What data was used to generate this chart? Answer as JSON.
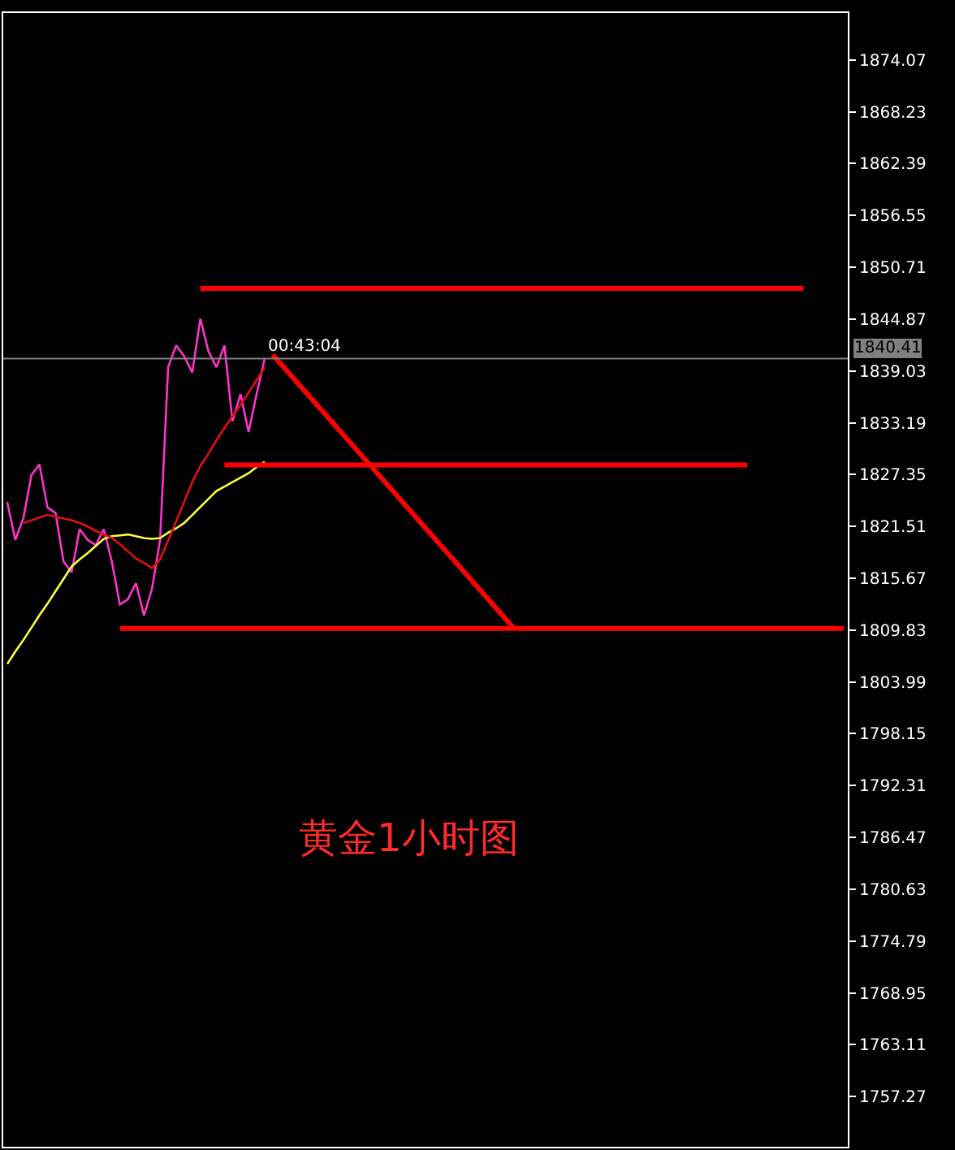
{
  "chart_data": {
    "type": "line",
    "annotations": [
      "黄金1小时图",
      "00:43:04"
    ],
    "categories": [
      null,
      null,
      null,
      null,
      null,
      null,
      null,
      null,
      null,
      null,
      null,
      null,
      null,
      null,
      null,
      null,
      null,
      null,
      null,
      null,
      null,
      null,
      null,
      null,
      null,
      null,
      null,
      null,
      null,
      null,
      null,
      null,
      null,
      null,
      null,
      null,
      null,
      null,
      null,
      null,
      null,
      null,
      null,
      null,
      null,
      null,
      null,
      null,
      null,
      null,
      null,
      null,
      null,
      null,
      null,
      null,
      null,
      null,
      null,
      null,
      null,
      null,
      null,
      null,
      null,
      null,
      null,
      null,
      null,
      null,
      null,
      null,
      null,
      null,
      null,
      null,
      null,
      null,
      null,
      null,
      null,
      null,
      null,
      null,
      null,
      null,
      null,
      null,
      null,
      null,
      null,
      null,
      null,
      null,
      null,
      null,
      null,
      null,
      null,
      null,
      null,
      null,
      null,
      null,
      null
    ],
    "series": [
      {
        "color": "#ff33cc",
        "values": [
          1824.25,
          1819.99,
          1822.42,
          1827.29,
          1828.5,
          1823.64,
          1823.03,
          1817.55,
          1816.34,
          1821.2,
          1819.99,
          1819.38,
          1821.2,
          1817.55,
          1812.7,
          1813.3,
          1815.12,
          1811.47,
          1814.52,
          1819.99,
          1839.45,
          1841.9,
          1840.67,
          1838.85,
          1844.92,
          1841.27,
          1839.45,
          1841.9,
          1833.37,
          1836.42,
          1832.15,
          1836.42,
          1840.41,
          null,
          null,
          null,
          null,
          null,
          null,
          null,
          null,
          null,
          null,
          null,
          null,
          null,
          null,
          null,
          null,
          null,
          null,
          null,
          null,
          null,
          null,
          null,
          null,
          null,
          null,
          null,
          null,
          null,
          null,
          null,
          null,
          null,
          null,
          null,
          null,
          null,
          null,
          null,
          null,
          null,
          null,
          null,
          null,
          null,
          null,
          null,
          null,
          null,
          null,
          null,
          null,
          null,
          null,
          null,
          null,
          null,
          null,
          null,
          null,
          null,
          null,
          null,
          null,
          null,
          null,
          null,
          null,
          null,
          null,
          null,
          null
        ]
      },
      {
        "color": "#ffff40",
        "values": [
          1806.0,
          1807.4,
          1808.7,
          1810.1,
          1811.5,
          1812.8,
          1814.2,
          1815.6,
          1817.0,
          1817.8,
          1818.5,
          1819.3,
          1820.1,
          1820.4,
          1820.5,
          1820.6,
          1820.4,
          1820.2,
          1820.1,
          1820.2,
          1820.8,
          1821.3,
          1821.9,
          1822.8,
          1823.7,
          1824.6,
          1825.5,
          1826.0,
          1826.5,
          1827.0,
          1827.5,
          1828.2,
          1828.8,
          null,
          null,
          null,
          null,
          null,
          null,
          null,
          null,
          null,
          null,
          null,
          null,
          null,
          null,
          null,
          null,
          null,
          null,
          null,
          null,
          null,
          null,
          null,
          null,
          null,
          null,
          null,
          null,
          null,
          null,
          null,
          null,
          null,
          null,
          null,
          null,
          null,
          null,
          null,
          null,
          null,
          null,
          null,
          null,
          null,
          null,
          null,
          null,
          null,
          null,
          null,
          null,
          null,
          null,
          null,
          null,
          null,
          null,
          null,
          null,
          null,
          null,
          null,
          null,
          null,
          null,
          null,
          null,
          null,
          null,
          null,
          null
        ]
      },
      {
        "color": "#e01010",
        "values": [
          null,
          null,
          1821.9,
          1822.2,
          1822.5,
          1822.8,
          1822.6,
          1822.4,
          1822.2,
          1821.9,
          1821.5,
          1821.0,
          1820.6,
          1820.2,
          1819.5,
          1818.7,
          1817.9,
          1817.4,
          1816.8,
          1817.8,
          1819.9,
          1822.1,
          1824.3,
          1826.5,
          1828.3,
          1829.7,
          1831.2,
          1832.6,
          1833.9,
          1835.2,
          1836.6,
          1838.0,
          1839.4,
          null,
          null,
          null,
          null,
          null,
          null,
          null,
          null,
          null,
          null,
          null,
          null,
          null,
          null,
          null,
          null,
          null,
          null,
          null,
          null,
          null,
          null,
          null,
          null,
          null,
          null,
          null,
          null,
          null,
          null,
          null,
          null,
          null,
          null,
          null,
          null,
          null,
          null,
          null,
          null,
          null,
          null,
          null,
          null,
          null,
          null,
          null,
          null,
          null,
          null,
          null,
          null,
          null,
          null,
          null,
          null,
          null,
          null,
          null,
          null,
          null,
          null,
          null,
          null,
          null,
          null,
          null,
          null,
          null,
          null,
          null,
          null
        ]
      },
      {
        "color": "#ff0000",
        "values": [
          null,
          null,
          null,
          null,
          null,
          null,
          null,
          null,
          null,
          null,
          null,
          null,
          null,
          null,
          null,
          null,
          null,
          null,
          null,
          null,
          null,
          null,
          null,
          null,
          1848.34,
          null,
          null,
          null,
          null,
          null,
          null,
          null,
          null,
          null,
          null,
          null,
          null,
          null,
          null,
          null,
          null,
          null,
          null,
          null,
          null,
          null,
          null,
          null,
          null,
          null,
          null,
          null,
          null,
          null,
          null,
          null,
          null,
          null,
          null,
          null,
          null,
          null,
          null,
          null,
          null,
          null,
          null,
          null,
          null,
          null,
          null,
          null,
          null,
          null,
          null,
          null,
          null,
          null,
          null,
          null,
          null,
          null,
          null,
          null,
          null,
          null,
          null,
          null,
          null,
          null,
          null,
          null,
          null,
          null,
          null,
          null,
          null,
          null,
          null,
          1848.34,
          null,
          null,
          null,
          null,
          null
        ]
      },
      {
        "color": "#ff0000",
        "values": [
          null,
          null,
          null,
          null,
          null,
          null,
          null,
          null,
          null,
          null,
          null,
          null,
          null,
          null,
          null,
          null,
          null,
          null,
          null,
          null,
          null,
          null,
          null,
          null,
          null,
          null,
          null,
          1828.44,
          null,
          null,
          null,
          null,
          null,
          null,
          null,
          null,
          null,
          null,
          null,
          null,
          null,
          null,
          null,
          null,
          null,
          null,
          null,
          null,
          null,
          null,
          null,
          null,
          null,
          null,
          null,
          null,
          null,
          null,
          null,
          null,
          null,
          null,
          null,
          null,
          null,
          null,
          null,
          null,
          null,
          null,
          null,
          null,
          null,
          null,
          null,
          null,
          null,
          null,
          null,
          null,
          null,
          null,
          null,
          null,
          null,
          null,
          null,
          null,
          null,
          null,
          null,
          null,
          1828.44,
          null,
          null,
          null,
          null,
          null,
          null,
          null,
          null,
          null,
          null,
          null,
          null
        ]
      },
      {
        "color": "#ff0000",
        "values": [
          null,
          null,
          null,
          null,
          null,
          null,
          null,
          null,
          null,
          null,
          null,
          null,
          null,
          null,
          1810.01,
          null,
          null,
          null,
          null,
          null,
          null,
          null,
          null,
          null,
          null,
          null,
          null,
          null,
          null,
          null,
          null,
          null,
          null,
          null,
          null,
          null,
          null,
          null,
          null,
          null,
          null,
          null,
          null,
          null,
          null,
          null,
          null,
          null,
          null,
          null,
          null,
          null,
          null,
          null,
          null,
          null,
          null,
          null,
          null,
          null,
          null,
          null,
          null,
          null,
          null,
          null,
          null,
          null,
          null,
          null,
          null,
          null,
          null,
          null,
          null,
          null,
          null,
          null,
          null,
          null,
          null,
          null,
          null,
          null,
          null,
          null,
          null,
          null,
          null,
          null,
          null,
          null,
          null,
          null,
          null,
          null,
          null,
          null,
          null,
          null,
          null,
          null,
          null,
          null,
          1810.01
        ]
      },
      {
        "color": "#ff0000",
        "values": [
          null,
          null,
          null,
          null,
          null,
          null,
          null,
          null,
          null,
          null,
          null,
          null,
          null,
          null,
          null,
          null,
          null,
          null,
          null,
          null,
          null,
          null,
          null,
          null,
          null,
          null,
          null,
          null,
          null,
          null,
          null,
          null,
          null,
          1840.86,
          null,
          null,
          null,
          null,
          null,
          null,
          null,
          null,
          null,
          null,
          null,
          null,
          null,
          null,
          null,
          null,
          null,
          null,
          null,
          null,
          null,
          null,
          null,
          null,
          null,
          null,
          null,
          null,
          null,
          1810.01,
          null,
          null,
          null,
          null,
          null,
          null,
          null,
          null,
          null,
          null,
          null,
          null,
          null,
          null,
          null,
          null,
          null,
          null,
          null,
          null,
          null,
          null,
          null,
          null,
          null,
          null,
          null,
          null,
          null,
          null,
          null,
          null,
          null,
          null,
          null,
          null,
          null,
          null,
          null,
          null,
          null
        ]
      }
    ],
    "ref_lines": [
      {
        "axis": "y",
        "value": 1840.41,
        "label": "1840.41",
        "color": "#808080"
      }
    ],
    "ylim": [
      1751.61,
      1879.36
    ],
    "yticks": [
      1874.07,
      1868.23,
      1862.39,
      1856.55,
      1850.71,
      1844.87,
      1839.03,
      1833.19,
      1827.35,
      1821.51,
      1815.67,
      1809.83,
      1803.99,
      1798.15,
      1792.31,
      1786.47,
      1780.63,
      1774.79,
      1768.95,
      1763.11,
      1757.27
    ],
    "tick_labels": "y",
    "grid": false,
    "marker": "none",
    "line_style": "solid"
  }
}
